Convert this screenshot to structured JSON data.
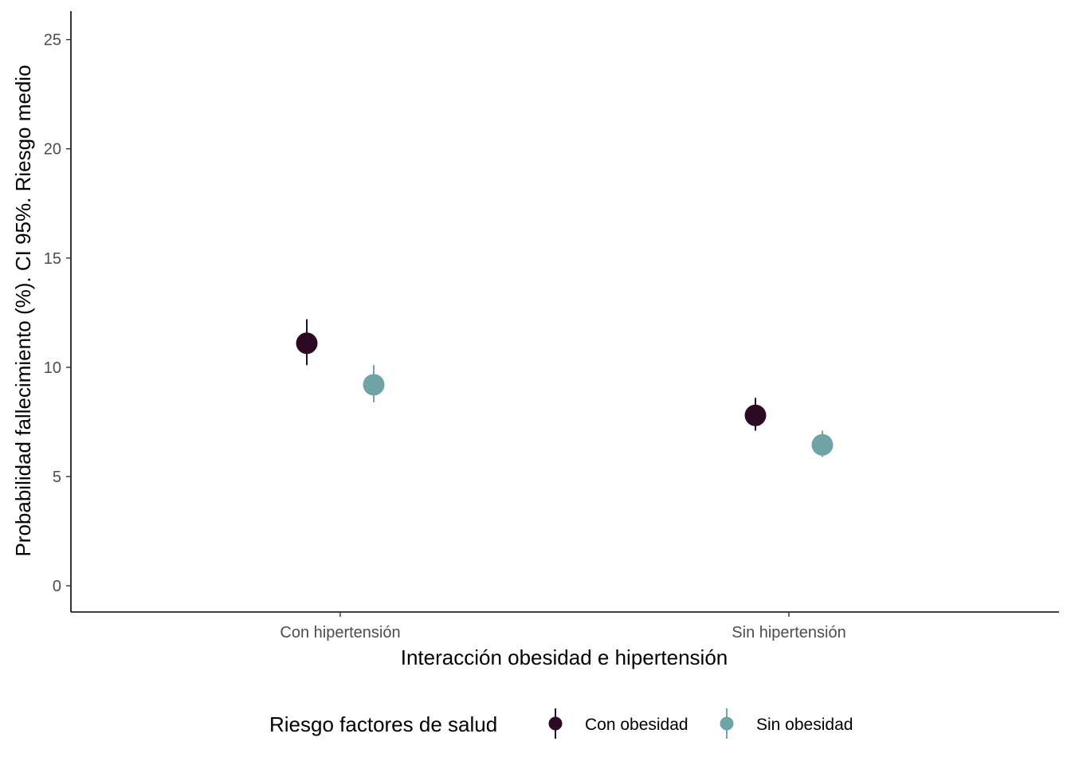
{
  "chart_data": {
    "type": "scatter",
    "title": "",
    "xlabel": "Interacción obesidad e hipertensión",
    "ylabel": "Probabilidad fallecimiento (%). CI 95%. Riesgo medio",
    "ylim": [
      -1.2,
      26.3
    ],
    "yticks": [
      0,
      5,
      10,
      15,
      20,
      25
    ],
    "yticks_labels": [
      "0",
      "5",
      "10",
      "15",
      "20",
      "25"
    ],
    "grid": false,
    "categories": [
      "Con hipertensión",
      "Sin hipertensión"
    ],
    "legend": {
      "title": "Riesgo factores de salud",
      "position": "bottom"
    },
    "series": [
      {
        "name": "Con obesidad",
        "color": "#2d0a24",
        "values": [
          11.1,
          7.8
        ],
        "ci_low": [
          10.1,
          7.1
        ],
        "ci_high": [
          12.2,
          8.6
        ]
      },
      {
        "name": "Sin obesidad",
        "color": "#6fa3a6",
        "values": [
          9.2,
          6.45
        ],
        "ci_low": [
          8.4,
          5.9
        ],
        "ci_high": [
          10.1,
          7.1
        ]
      }
    ]
  }
}
